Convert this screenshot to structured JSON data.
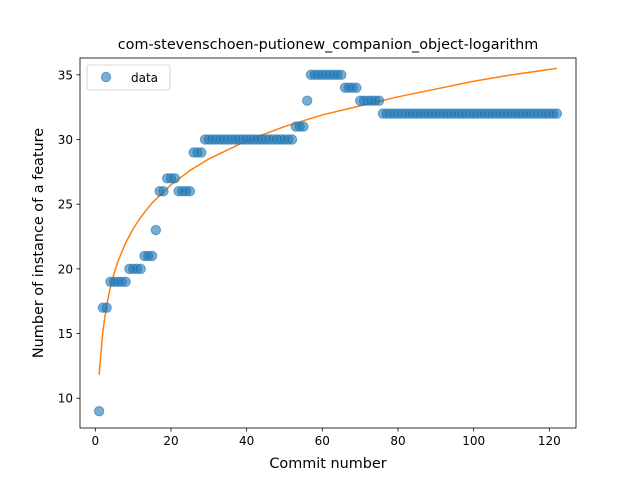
{
  "chart_data": {
    "type": "scatter",
    "title": "com-stevenschoen-putionew_companion_object-logarithm",
    "xlabel": "Commit number",
    "ylabel": "Number of instance of a feature",
    "xlim": [
      -4.05,
      127.05
    ],
    "ylim": [
      7.7,
      36.3
    ],
    "xticks": [
      0,
      20,
      40,
      60,
      80,
      100,
      120
    ],
    "yticks": [
      10,
      15,
      20,
      25,
      30,
      35
    ],
    "legend": {
      "position": "top-left",
      "entries": [
        "data"
      ]
    },
    "colors": {
      "data": "#1f77b4",
      "fit": "#ff7f0e"
    },
    "series": [
      {
        "name": "data",
        "kind": "scatter",
        "x": [
          1,
          2,
          3,
          4,
          5,
          6,
          7,
          8,
          9,
          10,
          11,
          12,
          13,
          14,
          15,
          16,
          17,
          18,
          19,
          20,
          21,
          22,
          23,
          24,
          25,
          26,
          27,
          28,
          29,
          30,
          31,
          32,
          33,
          34,
          35,
          36,
          37,
          38,
          39,
          40,
          41,
          42,
          43,
          44,
          45,
          46,
          47,
          48,
          49,
          50,
          51,
          52,
          53,
          54,
          55,
          56,
          57,
          58,
          59,
          60,
          61,
          62,
          63,
          64,
          65,
          66,
          67,
          68,
          69,
          70,
          71,
          72,
          73,
          74,
          75,
          76,
          77,
          78,
          79,
          80,
          81,
          82,
          83,
          84,
          85,
          86,
          87,
          88,
          89,
          90,
          91,
          92,
          93,
          94,
          95,
          96,
          97,
          98,
          99,
          100,
          101,
          102,
          103,
          104,
          105,
          106,
          107,
          108,
          109,
          110,
          111,
          112,
          113,
          114,
          115,
          116,
          117,
          118,
          119,
          120,
          121,
          122
        ],
        "y": [
          9,
          17,
          17,
          19,
          19,
          19,
          19,
          19,
          20,
          20,
          20,
          20,
          21,
          21,
          21,
          23,
          26,
          26,
          27,
          27,
          27,
          26,
          26,
          26,
          26,
          29,
          29,
          29,
          30,
          30,
          30,
          30,
          30,
          30,
          30,
          30,
          30,
          30,
          30,
          30,
          30,
          30,
          30,
          30,
          30,
          30,
          30,
          30,
          30,
          30,
          30,
          30,
          31,
          31,
          31,
          33,
          35,
          35,
          35,
          35,
          35,
          35,
          35,
          35,
          35,
          34,
          34,
          34,
          34,
          33,
          33,
          33,
          33,
          33,
          33,
          32,
          32,
          32,
          32,
          32,
          32,
          32,
          32,
          32,
          32,
          32,
          32,
          32,
          32,
          32,
          32,
          32,
          32,
          32,
          32,
          32,
          32,
          32,
          32,
          32,
          32,
          32,
          32,
          32,
          32,
          32,
          32,
          32,
          32,
          32,
          32,
          32,
          32,
          32,
          32,
          32,
          32,
          32,
          32,
          32,
          32,
          32
        ]
      },
      {
        "kind": "line",
        "x": [
          1,
          2,
          3,
          4,
          5,
          6,
          8,
          10,
          12,
          15,
          20,
          25,
          30,
          40,
          50,
          60,
          70,
          80,
          90,
          100,
          110,
          122
        ],
        "y": [
          11.8,
          15.2,
          17.2,
          18.6,
          19.7,
          20.6,
          22.0,
          23.1,
          24.0,
          25.1,
          26.5,
          27.6,
          28.5,
          29.9,
          31.0,
          31.9,
          32.6,
          33.3,
          33.9,
          34.5,
          35.0,
          35.5
        ]
      }
    ]
  }
}
